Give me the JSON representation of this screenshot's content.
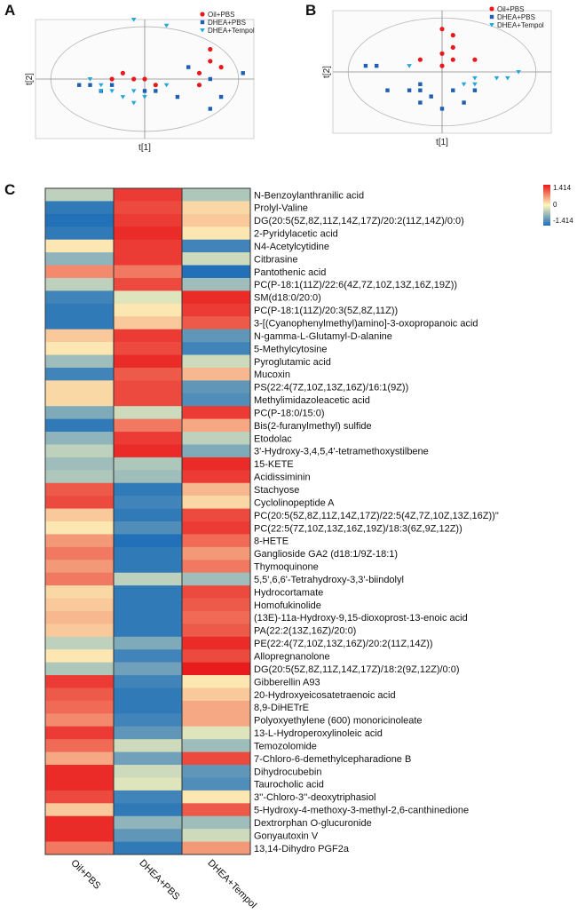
{
  "panels": {
    "a": {
      "letter": "A",
      "xlabel": "t[1]",
      "ylabel": "t[2]",
      "legend": [
        "Oil+PBS",
        "DHEA+PBS",
        "DHEA+Tempol"
      ]
    },
    "b": {
      "letter": "B",
      "xlabel": "t[1]",
      "ylabel": "t[2]",
      "legend": [
        "Oil+PBS",
        "DHEA+PBS",
        "DHEA+Tempol"
      ]
    },
    "c": {
      "letter": "C"
    }
  },
  "colors": {
    "oil": "#e8191b",
    "dhea": "#1f5fb4",
    "tempol": "#27a6d9",
    "scale_high": "#e8191b",
    "scale_mid": "#fdf7bd",
    "scale_low": "#1f6fb8"
  },
  "chart_data": [
    {
      "type": "scatter",
      "panel": "A",
      "xlabel": "t[1]",
      "ylabel": "t[2]",
      "xlim": [
        -10,
        10
      ],
      "ylim": [
        -10,
        10
      ],
      "series": [
        {
          "name": "Oil+PBS",
          "points": [
            [
              6,
              5
            ],
            [
              6,
              3
            ],
            [
              5,
              1
            ],
            [
              -2,
              1
            ],
            [
              -1,
              0
            ],
            [
              0,
              0
            ],
            [
              1,
              -1
            ],
            [
              5,
              -1
            ],
            [
              -3,
              0
            ],
            [
              7,
              2
            ]
          ]
        },
        {
          "name": "DHEA+PBS",
          "points": [
            [
              4,
              2
            ],
            [
              6,
              0
            ],
            [
              9,
              1
            ],
            [
              -6,
              -1
            ],
            [
              -5,
              -1
            ],
            [
              -3,
              -1
            ],
            [
              0,
              -2
            ],
            [
              1,
              -2
            ],
            [
              3,
              -3
            ],
            [
              7,
              -3
            ],
            [
              -4,
              -2
            ],
            [
              6,
              -5
            ]
          ]
        },
        {
          "name": "DHEA+Tempol",
          "points": [
            [
              -1,
              10
            ],
            [
              2,
              9
            ],
            [
              -5,
              0
            ],
            [
              -4,
              -1
            ],
            [
              -4,
              -2
            ],
            [
              -3,
              -2
            ],
            [
              -1,
              -2
            ],
            [
              -2,
              -3
            ],
            [
              0,
              -3
            ],
            [
              2,
              -1
            ],
            [
              -1,
              -4
            ]
          ]
        }
      ]
    },
    {
      "type": "scatter",
      "panel": "B",
      "xlabel": "t[1]",
      "ylabel": "t[2]",
      "xlim": [
        -10,
        10
      ],
      "ylim": [
        -10,
        10
      ],
      "series": [
        {
          "name": "Oil+PBS",
          "points": [
            [
              0,
              7
            ],
            [
              1,
              6
            ],
            [
              1,
              4
            ],
            [
              0,
              3
            ],
            [
              -2,
              2
            ],
            [
              1,
              2
            ],
            [
              3,
              2
            ],
            [
              0,
              1
            ]
          ]
        },
        {
          "name": "DHEA+PBS",
          "points": [
            [
              -7,
              1
            ],
            [
              -6,
              1
            ],
            [
              -5,
              -3
            ],
            [
              -3,
              -3
            ],
            [
              -2,
              -3
            ],
            [
              -2,
              -2
            ],
            [
              1,
              -3
            ],
            [
              3,
              -3
            ],
            [
              -1,
              -4
            ],
            [
              2,
              -5
            ],
            [
              -2,
              -5
            ],
            [
              0,
              -6
            ]
          ]
        },
        {
          "name": "DHEA+Tempol",
          "points": [
            [
              -3,
              1
            ],
            [
              3,
              -1
            ],
            [
              3,
              -2
            ],
            [
              5,
              -1
            ],
            [
              6,
              -1
            ],
            [
              7,
              0
            ],
            [
              2,
              -2
            ]
          ]
        }
      ]
    },
    {
      "type": "heatmap",
      "panel": "C",
      "columns": [
        "Oil+PBS",
        "DHEA+PBS",
        "DHEA+Tempol"
      ],
      "rows": [
        "N-Benzoylanthranilic acid",
        "Prolyl-Valine",
        "DG(20:5(5Z,8Z,11Z,14Z,17Z)/20:2(11Z,14Z)/0:0)",
        "2-Pyridylacetic acid",
        "N4-Acetylcytidine",
        "Citbrasine",
        "Pantothenic acid",
        "PC(P-18:1(11Z)/22:6(4Z,7Z,10Z,13Z,16Z,19Z))",
        "SM(d18:0/20:0)",
        "PC(P-18:1(11Z)/20:3(5Z,8Z,11Z))",
        "3-[(Cyanophenylmethyl)amino]-3-oxopropanoic acid",
        "N-gamma-L-Glutamyl-D-alanine",
        "5-Methylcytosine",
        "Pyroglutamic acid",
        "Mucoxin",
        "PS(22:4(7Z,10Z,13Z,16Z)/16:1(9Z))",
        "Methylimidazoleacetic acid",
        "PC(P-18:0/15:0)",
        "Bis(2-furanylmethyl) sulfide",
        "Etodolac",
        "3'-Hydroxy-3,4,5,4'-tetramethoxystilbene",
        "15-KETE",
        "Acidissiminin",
        "Stachyose",
        "Cyclolinopeptide A",
        "PC(20:5(5Z,8Z,11Z,14Z,17Z)/22:5(4Z,7Z,10Z,13Z,16Z))\"",
        "PC(22:5(7Z,10Z,13Z,16Z,19Z)/18:3(6Z,9Z,12Z))",
        "8-HETE",
        "Ganglioside GA2 (d18:1/9Z-18:1)",
        "Thymoquinone",
        "5,5',6,6'-Tetrahydroxy-3,3'-biindolyl",
        "Hydrocortamate",
        "Homofukinolide",
        "(13E)-11a-Hydroxy-9,15-dioxoprost-13-enoic acid",
        "PA(22:2(13Z,16Z)/20:0)",
        "PE(22:4(7Z,10Z,13Z,16Z)/20:2(11Z,14Z))",
        "Allopregnanolone",
        "DG(20:5(5Z,8Z,11Z,14Z,17Z)/18:2(9Z,12Z)/0:0)",
        "Gibberellin A93",
        "20-Hydroxyeicosatetraenoic acid",
        "8,9-DiHETrE",
        "Polyoxyethylene (600) monoricinoleate",
        "13-L-Hydroperoxylinoleic acid",
        "Temozolomide",
        "7-Chloro-6-demethylcepharadione B",
        "Dihydrocubebin",
        "Taurocholic acid",
        "3''-Chloro-3''-deoxytriphasiol",
        "5-Hydroxy-4-methoxy-3-methyl-2,6-canthinedione",
        "Dextrorphan O-glucuronide",
        "Gonyautoxin V",
        "13,14-Dihydro PGF2a"
      ],
      "values": [
        [
          -0.4,
          1.2,
          -0.5
        ],
        [
          -1.3,
          1.1,
          0.2
        ],
        [
          -1.4,
          1.2,
          0.3
        ],
        [
          -1.3,
          1.3,
          0.1
        ],
        [
          0.1,
          1.2,
          -1.2
        ],
        [
          -0.7,
          1.2,
          -0.3
        ],
        [
          0.7,
          0.8,
          -1.4
        ],
        [
          -0.4,
          1.1,
          -0.6
        ],
        [
          -1.2,
          -0.2,
          1.3
        ],
        [
          -1.3,
          0.1,
          1.2
        ],
        [
          -1.3,
          0.3,
          1.0
        ],
        [
          0.3,
          1.2,
          -1.0
        ],
        [
          0.1,
          1.1,
          -1.2
        ],
        [
          -0.6,
          1.3,
          -0.3
        ],
        [
          -1.2,
          1.0,
          0.4
        ],
        [
          0.2,
          1.1,
          -1.0
        ],
        [
          0.2,
          1.1,
          -1.1
        ],
        [
          -0.8,
          -0.3,
          1.2
        ],
        [
          -1.3,
          0.8,
          0.5
        ],
        [
          -0.7,
          1.2,
          -0.4
        ],
        [
          -0.4,
          1.3,
          -0.8
        ],
        [
          -0.6,
          -0.5,
          1.3
        ],
        [
          -0.5,
          -0.6,
          1.2
        ],
        [
          1.0,
          -1.3,
          0.4
        ],
        [
          1.1,
          -1.2,
          0.2
        ],
        [
          0.3,
          -1.3,
          1.1
        ],
        [
          0.1,
          -1.1,
          1.2
        ],
        [
          0.6,
          -1.4,
          0.9
        ],
        [
          0.8,
          -1.3,
          0.6
        ],
        [
          0.6,
          -1.3,
          0.8
        ],
        [
          0.8,
          -0.4,
          -0.6
        ],
        [
          0.2,
          -1.3,
          1.1
        ],
        [
          0.3,
          -1.3,
          1.0
        ],
        [
          0.4,
          -1.3,
          0.9
        ],
        [
          0.3,
          -1.3,
          1.0
        ],
        [
          -0.4,
          -0.8,
          1.3
        ],
        [
          0.1,
          -1.2,
          1.1
        ],
        [
          -0.5,
          -0.9,
          1.4
        ],
        [
          1.2,
          -1.2,
          0.1
        ],
        [
          1.0,
          -1.3,
          0.3
        ],
        [
          0.9,
          -1.3,
          0.5
        ],
        [
          0.7,
          -1.2,
          0.5
        ],
        [
          1.2,
          -1.0,
          -0.2
        ],
        [
          0.9,
          -0.3,
          -0.6
        ],
        [
          0.5,
          -0.9,
          1.1
        ],
        [
          1.3,
          -0.3,
          -1.0
        ],
        [
          1.3,
          -0.2,
          -1.1
        ],
        [
          1.1,
          -1.2,
          0.1
        ],
        [
          0.3,
          -1.3,
          1.0
        ],
        [
          1.3,
          -0.7,
          -0.6
        ],
        [
          1.3,
          -1.0,
          -0.3
        ],
        [
          0.8,
          -1.3,
          0.6
        ]
      ],
      "scale": {
        "max_label": "1.414",
        "mid_label": "0",
        "min_label": "-1.414",
        "range": [
          -1.414,
          1.414
        ]
      }
    }
  ]
}
